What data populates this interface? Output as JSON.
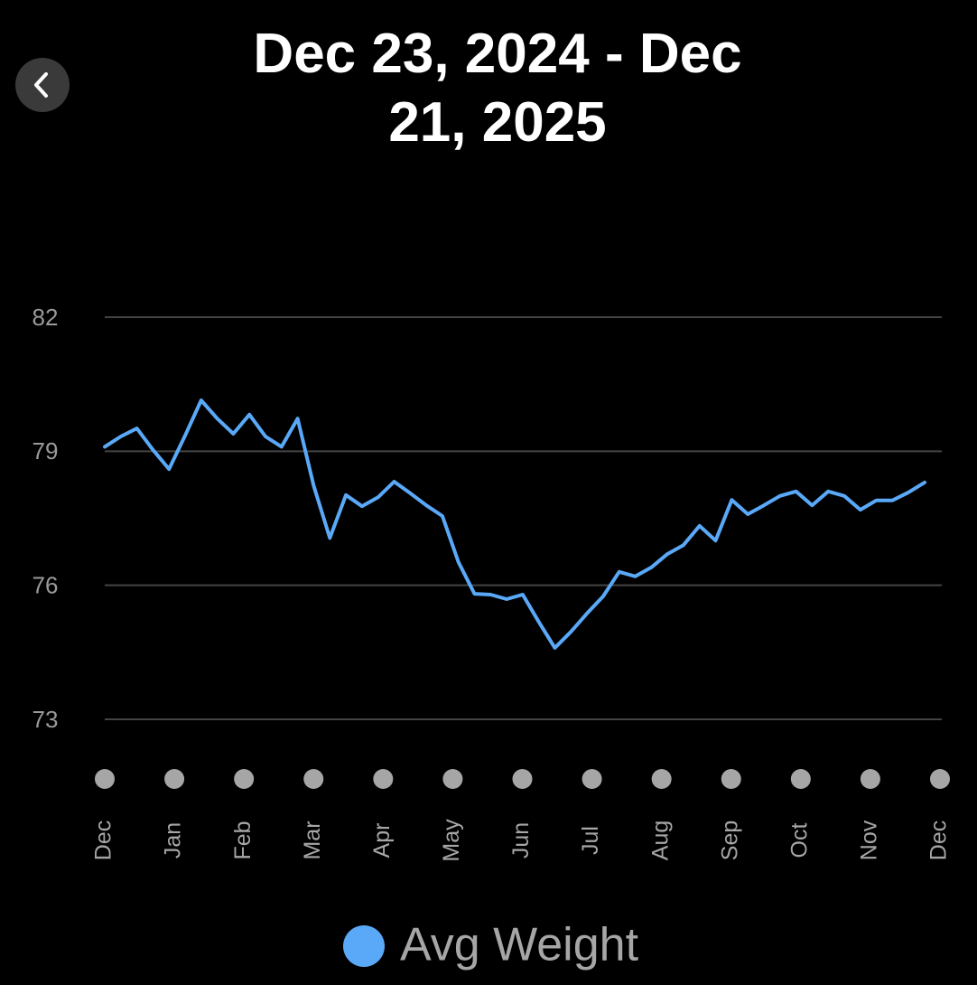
{
  "chart_data": {
    "type": "line",
    "title": "Dec 23, 2024 - Dec 21, 2025",
    "x_labels": [
      "Dec",
      "Jan",
      "Feb",
      "Mar",
      "Apr",
      "May",
      "Jun",
      "Jul",
      "Aug",
      "Sep",
      "Oct",
      "Nov",
      "Dec"
    ],
    "series": [
      {
        "name": "Avg Weight",
        "color": "#5aa9f8",
        "values": [
          79.1,
          79.33,
          79.51,
          79.03,
          78.6,
          79.35,
          80.14,
          79.73,
          79.39,
          79.82,
          79.33,
          79.1,
          79.73,
          78.22,
          77.06,
          78.02,
          77.77,
          77.97,
          78.32,
          78.06,
          77.79,
          77.55,
          76.52,
          75.81,
          75.79,
          75.69,
          75.79,
          75.18,
          74.6,
          74.96,
          75.37,
          75.75,
          76.3,
          76.2,
          76.4,
          76.7,
          76.9,
          77.33,
          77.0,
          77.91,
          77.59,
          77.79,
          78.0,
          78.1,
          77.79,
          78.1,
          78.0,
          77.69,
          77.9,
          77.9,
          78.08,
          78.3
        ]
      }
    ],
    "ylim": [
      73,
      82
    ],
    "yticks": [
      73,
      76,
      79,
      82
    ],
    "grid": true
  }
}
